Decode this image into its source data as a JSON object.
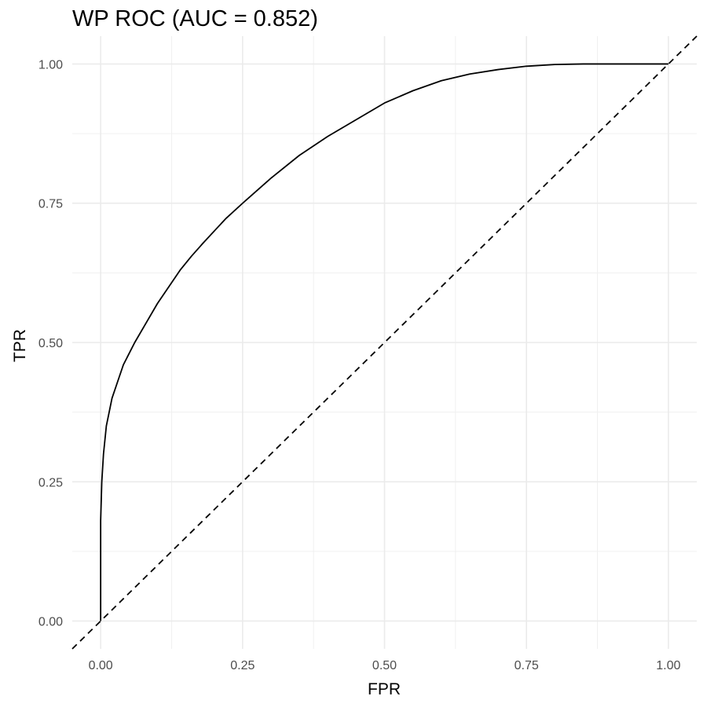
{
  "chart_data": {
    "type": "line",
    "title": "WP ROC (AUC = 0.852)",
    "xlabel": "FPR",
    "ylabel": "TPR",
    "xlim": [
      -0.05,
      1.05
    ],
    "ylim": [
      -0.05,
      1.05
    ],
    "xticks": [
      0.0,
      0.25,
      0.5,
      0.75,
      1.0
    ],
    "yticks": [
      0.0,
      0.25,
      0.5,
      0.75,
      1.0
    ],
    "x_tick_labels": [
      "0.00",
      "0.25",
      "0.50",
      "0.75",
      "1.00"
    ],
    "y_tick_labels": [
      "0.00",
      "0.25",
      "0.50",
      "0.75",
      "1.00"
    ],
    "grid": true,
    "series": [
      {
        "line_style": "solid",
        "color": "#000000",
        "points": [
          [
            0.0,
            0.0
          ],
          [
            0.0,
            0.18
          ],
          [
            0.002,
            0.25
          ],
          [
            0.005,
            0.3
          ],
          [
            0.01,
            0.35
          ],
          [
            0.02,
            0.4
          ],
          [
            0.03,
            0.43
          ],
          [
            0.04,
            0.46
          ],
          [
            0.05,
            0.48
          ],
          [
            0.06,
            0.5
          ],
          [
            0.08,
            0.535
          ],
          [
            0.1,
            0.57
          ],
          [
            0.12,
            0.6
          ],
          [
            0.14,
            0.63
          ],
          [
            0.16,
            0.655
          ],
          [
            0.18,
            0.678
          ],
          [
            0.2,
            0.7
          ],
          [
            0.22,
            0.722
          ],
          [
            0.25,
            0.75
          ],
          [
            0.3,
            0.795
          ],
          [
            0.35,
            0.836
          ],
          [
            0.4,
            0.87
          ],
          [
            0.45,
            0.9
          ],
          [
            0.5,
            0.93
          ],
          [
            0.55,
            0.952
          ],
          [
            0.6,
            0.97
          ],
          [
            0.65,
            0.982
          ],
          [
            0.7,
            0.99
          ],
          [
            0.75,
            0.996
          ],
          [
            0.8,
            0.999
          ],
          [
            0.85,
            1.0
          ],
          [
            1.0,
            1.0
          ]
        ]
      },
      {
        "line_style": "dashed",
        "color": "#000000",
        "points": [
          [
            -0.05,
            -0.05
          ],
          [
            1.05,
            1.05
          ]
        ]
      }
    ]
  }
}
